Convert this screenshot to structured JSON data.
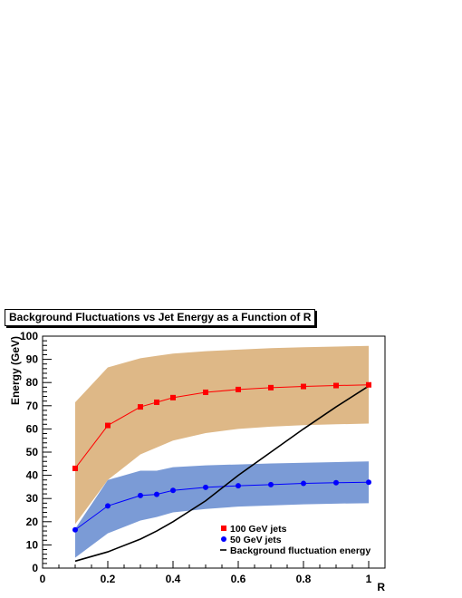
{
  "chart_data": {
    "type": "line",
    "title": "Background Fluctuations vs Jet Energy as a Function of R",
    "xlabel": "R",
    "ylabel": "Energy (GeV)",
    "xlim": [
      0,
      1.05
    ],
    "ylim": [
      0,
      100
    ],
    "xticks": [
      0,
      0.2,
      0.4,
      0.6,
      0.8,
      1
    ],
    "xtick_labels": [
      "0",
      "0.2",
      "0.4",
      "0.6",
      "0.8",
      "1"
    ],
    "yticks": [
      0,
      10,
      20,
      30,
      40,
      50,
      60,
      70,
      80,
      90,
      100
    ],
    "ytick_labels": [
      "0",
      "10",
      "20",
      "30",
      "40",
      "50",
      "60",
      "70",
      "80",
      "90",
      "100"
    ],
    "x": [
      0.1,
      0.2,
      0.3,
      0.35,
      0.4,
      0.5,
      0.6,
      0.7,
      0.8,
      0.9,
      1.0
    ],
    "series": [
      {
        "name": "100 GeV jets",
        "color": "#ff0000",
        "marker": "square",
        "values": [
          43,
          61.5,
          69.5,
          71.5,
          73.5,
          75.8,
          77,
          77.8,
          78.3,
          78.7,
          79
        ],
        "band_upper": [
          71.5,
          86.5,
          90.5,
          91.5,
          92.5,
          93.5,
          94.2,
          94.8,
          95.2,
          95.5,
          95.8
        ],
        "band_lower": [
          19,
          38,
          49,
          52,
          55,
          58.2,
          60,
          61,
          61.6,
          62,
          62.3
        ],
        "band_color": "#deb887"
      },
      {
        "name": "50 GeV jets",
        "color": "#0000ff",
        "marker": "circle",
        "values": [
          16.5,
          26.8,
          31.3,
          31.8,
          33.5,
          34.8,
          35.5,
          36,
          36.5,
          36.8,
          37
        ],
        "band_upper": [
          17,
          38,
          42,
          42,
          43.5,
          44.3,
          44.7,
          45.1,
          45.4,
          45.7,
          46
        ],
        "band_lower": [
          4.5,
          15,
          20.5,
          22,
          24,
          25.5,
          26.5,
          27,
          27.5,
          27.8,
          28
        ],
        "band_color": "#7b9bd6"
      },
      {
        "name": "Background fluctuation energy",
        "color": "#000000",
        "marker": "none",
        "values": [
          3,
          7,
          12.5,
          16,
          20,
          29,
          40,
          50,
          60,
          69.5,
          78.5
        ]
      }
    ],
    "legend": [
      "100 GeV jets",
      "50 GeV jets",
      "Background fluctuation energy"
    ],
    "legend_placement": "bottom-right",
    "grid": false
  }
}
